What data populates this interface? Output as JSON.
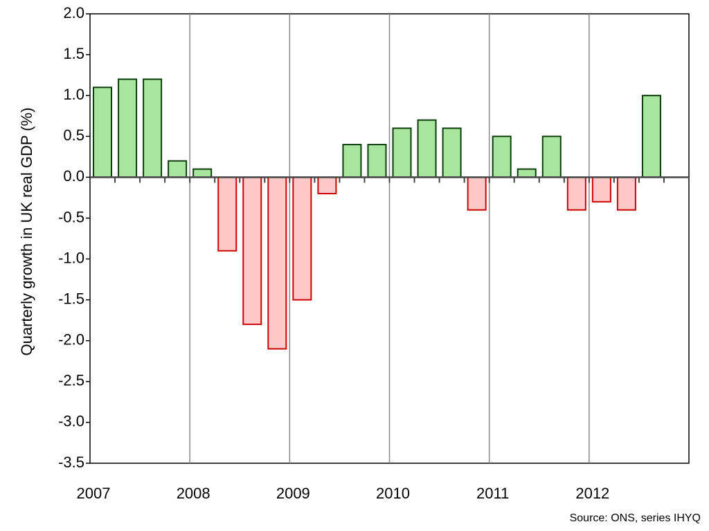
{
  "chart_data": {
    "type": "bar",
    "y_label": "Quarterly growth in UK real GDP (%)",
    "source": "Source: ONS, series IHYQ",
    "categories": [
      "2007",
      null,
      null,
      null,
      "2008",
      null,
      null,
      null,
      "2009",
      null,
      null,
      null,
      "2010",
      null,
      null,
      null,
      "2011",
      null,
      null,
      null,
      "2012",
      null,
      null,
      null
    ],
    "values": [
      1.1,
      1.2,
      1.2,
      0.2,
      0.1,
      -0.9,
      -1.8,
      -2.1,
      -1.5,
      -0.2,
      0.4,
      0.4,
      0.6,
      0.7,
      0.6,
      -0.4,
      0.5,
      0.1,
      0.5,
      -0.4,
      -0.3,
      -0.4,
      1.0,
      null
    ],
    "positive_color": "#a8e6a0",
    "positive_edge": "#0b3d0b",
    "negative_color": "#ffc9c9",
    "negative_edge": "#cc0000",
    "ylim": [
      -3.5,
      2.0
    ],
    "yticks": [
      {
        "value": 2,
        "label": "2.0"
      },
      1.5,
      {
        "value": 1,
        "label": "1.0"
      },
      0.5,
      {
        "value": 0,
        "label": "0.0"
      },
      -0.5,
      {
        "value": -1,
        "label": "-1.0"
      },
      -1.5,
      {
        "value": -2,
        "label": "-2.0"
      },
      -2.5,
      {
        "value": -3,
        "label": "-3.0"
      },
      -3.5
    ],
    "grid": true
  }
}
